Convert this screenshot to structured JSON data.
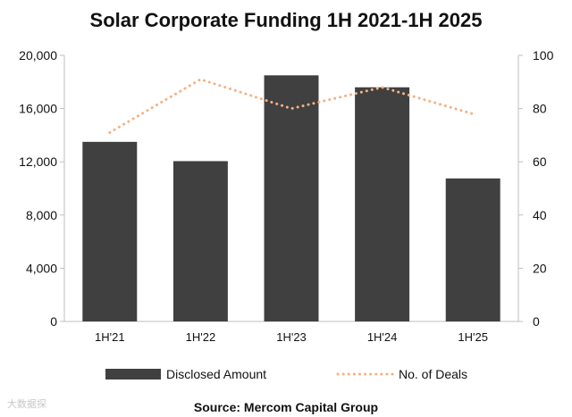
{
  "chart_data": {
    "type": "bar",
    "title": "Solar Corporate Funding 1H 2021-1H 2025",
    "categories": [
      "1H'21",
      "1H'22",
      "1H'23",
      "1H'24",
      "1H'25"
    ],
    "series": [
      {
        "name": "Disclosed Amount",
        "type": "bar",
        "axis": "left",
        "values": [
          13500,
          12050,
          18500,
          17600,
          10750
        ]
      },
      {
        "name": "No. of Deals",
        "type": "line",
        "style": "dotted",
        "axis": "right",
        "values": [
          71,
          91,
          80,
          88,
          78
        ]
      }
    ],
    "y_left": {
      "min": 0,
      "max": 20000,
      "ticks": [
        0,
        4000,
        8000,
        12000,
        16000,
        20000
      ],
      "tick_labels": [
        "0",
        "4,000",
        "8,000",
        "12,000",
        "16,000",
        "20,000"
      ]
    },
    "y_right": {
      "min": 0,
      "max": 100,
      "ticks": [
        0,
        20,
        40,
        60,
        80,
        100
      ],
      "tick_labels": [
        "0",
        "20",
        "40",
        "60",
        "80",
        "100"
      ]
    },
    "legend": {
      "position": "bottom",
      "entries": [
        "Disclosed Amount",
        "No. of Deals"
      ]
    },
    "source": "Source: Mercom Capital Group",
    "colors": {
      "bar": "#404040",
      "line": "#f4b183",
      "axis": "#bfbfbf",
      "text": "#111111"
    }
  },
  "watermark": {
    "text": "大数据探"
  }
}
